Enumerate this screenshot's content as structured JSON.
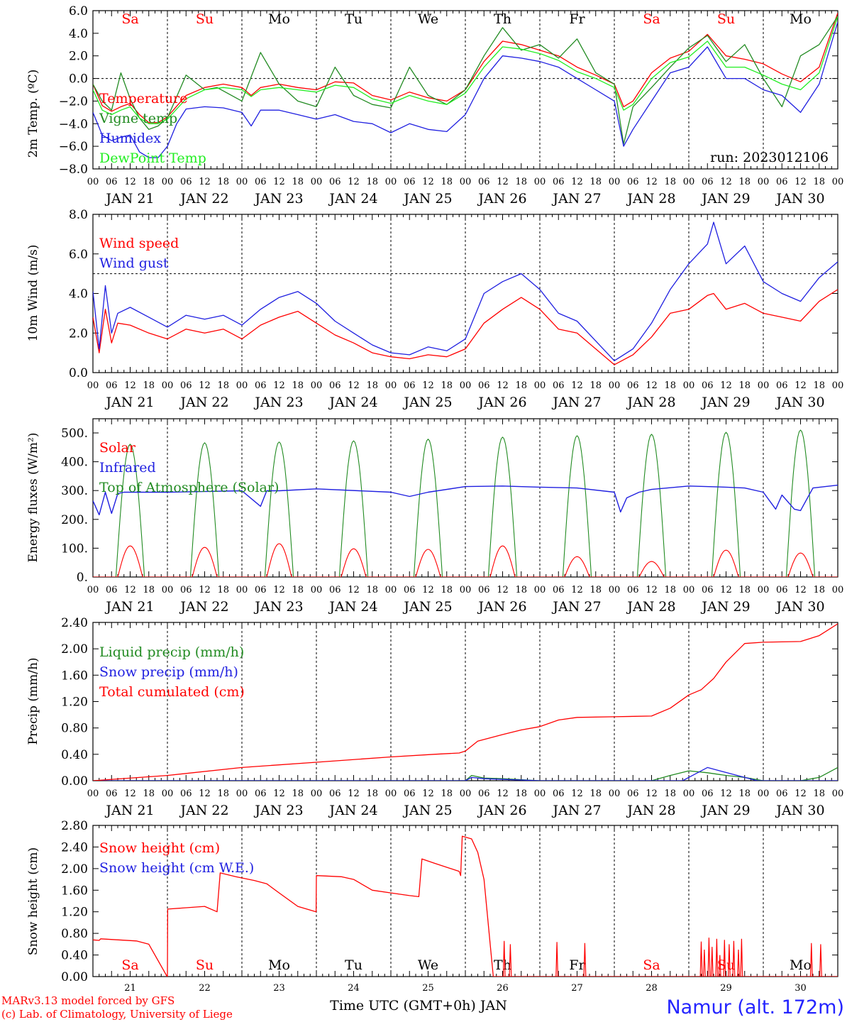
{
  "colors": {
    "red": "#ff0000",
    "green": "#228b22",
    "blue": "#1f1fe0",
    "lightgreen": "#22ee22",
    "black": "#000000",
    "footer_blue": "#2424ff"
  },
  "common": {
    "tick_hours": [
      "00",
      "06",
      "12",
      "18"
    ],
    "end_tick": "00",
    "dates": [
      "JAN 21",
      "JAN 22",
      "JAN 23",
      "JAN 24",
      "JAN 25",
      "JAN 26",
      "JAN 27",
      "JAN 28",
      "JAN 29",
      "JAN 30"
    ],
    "weekdays": [
      "Sa",
      "Su",
      "Mo",
      "Tu",
      "We",
      "Th",
      "Fr",
      "Sa",
      "Su",
      "Mo"
    ],
    "weekday_colors": [
      "#ff0000",
      "#ff0000",
      "#000000",
      "#000000",
      "#000000",
      "#000000",
      "#000000",
      "#ff0000",
      "#ff0000",
      "#000000"
    ],
    "day_numbers": [
      "21",
      "22",
      "23",
      "24",
      "25",
      "26",
      "27",
      "28",
      "29",
      "30"
    ]
  },
  "footer": {
    "model_line": "MARv3.13 model forced by GFS",
    "lab_line": "(c) Lab. of Climatology, University of Liege",
    "xlabel": "Time UTC (GMT+0h) JAN",
    "station": "Namur (alt. 172m)"
  },
  "chart_data": [
    {
      "type": "line",
      "ylabel": "2m Temp. (ºC)",
      "yticks": [
        "6.0",
        "4.0",
        "2.0",
        "0.0",
        "−2.0",
        "−4.0",
        "−6.0",
        "−8.0"
      ],
      "ylim": [
        -8,
        6
      ],
      "dashed_ref": 0,
      "run_label": "run: 2023012106",
      "x_unit": "hours since JAN 21 00 UTC",
      "series": [
        {
          "name": "Temperature",
          "color": "#ff0000",
          "x": [
            0,
            3,
            6,
            9,
            12,
            15,
            18,
            21,
            24,
            30,
            36,
            42,
            48,
            51,
            54,
            60,
            66,
            72,
            78,
            84,
            90,
            96,
            102,
            108,
            114,
            120,
            126,
            132,
            138,
            144,
            150,
            156,
            162,
            168,
            171,
            174,
            180,
            186,
            192,
            198,
            204,
            210,
            216,
            222,
            228,
            234,
            240
          ],
          "values": [
            -0.5,
            -2.4,
            -2.9,
            -2.5,
            -2.2,
            -3.2,
            -3.9,
            -3.9,
            -3.4,
            -1.5,
            -0.8,
            -0.5,
            -0.8,
            -1.5,
            -0.8,
            -0.5,
            -0.8,
            -1.0,
            -0.3,
            -0.4,
            -1.5,
            -1.9,
            -1.2,
            -1.7,
            -2.0,
            -1.0,
            1.5,
            3.3,
            3.0,
            2.5,
            2.0,
            1.0,
            0.3,
            -0.5,
            -2.5,
            -2.0,
            0.5,
            1.8,
            2.4,
            3.9,
            2.0,
            1.7,
            1.3,
            0.4,
            -0.3,
            1.0,
            5.8
          ]
        },
        {
          "name": "Vigne temp",
          "color": "#228b22",
          "x": [
            0,
            3,
            6,
            9,
            12,
            15,
            18,
            21,
            24,
            30,
            36,
            40,
            48,
            54,
            60,
            66,
            72,
            78,
            84,
            90,
            96,
            102,
            108,
            114,
            120,
            126,
            132,
            138,
            144,
            150,
            156,
            162,
            168,
            171,
            174,
            180,
            186,
            192,
            198,
            204,
            210,
            216,
            222,
            228,
            234,
            240
          ],
          "values": [
            -0.5,
            -2.0,
            -2.8,
            0.5,
            -1.8,
            -3.5,
            -4.5,
            -4.2,
            -3.5,
            0.3,
            -1.0,
            -0.8,
            -2.0,
            2.3,
            -0.5,
            -2.0,
            -2.5,
            1.0,
            -1.5,
            -2.3,
            -2.6,
            1.0,
            -1.5,
            -2.3,
            -1.0,
            2.0,
            4.5,
            2.5,
            3.0,
            1.8,
            3.5,
            0.5,
            -0.5,
            -5.8,
            -2.5,
            -0.8,
            1.0,
            2.7,
            3.8,
            1.5,
            3.0,
            0.0,
            -2.5,
            2.0,
            3.0,
            5.5
          ]
        },
        {
          "name": "Humidex",
          "color": "#1f1fe0",
          "x": [
            0,
            3,
            6,
            9,
            12,
            15,
            18,
            21,
            24,
            27,
            30,
            36,
            42,
            48,
            51,
            54,
            60,
            66,
            72,
            78,
            84,
            90,
            96,
            102,
            108,
            114,
            120,
            126,
            132,
            138,
            144,
            150,
            156,
            162,
            168,
            171,
            174,
            180,
            186,
            192,
            198,
            204,
            210,
            216,
            222,
            228,
            234,
            240
          ],
          "values": [
            -3.0,
            -5.0,
            -5.5,
            -5.2,
            -5.0,
            -6.5,
            -7.0,
            -7.0,
            -6.0,
            -4.0,
            -2.7,
            -2.5,
            -2.6,
            -3.0,
            -4.2,
            -2.8,
            -2.8,
            -3.2,
            -3.6,
            -3.2,
            -3.8,
            -4.0,
            -4.8,
            -4.0,
            -4.5,
            -4.7,
            -3.2,
            0.0,
            2.0,
            1.8,
            1.5,
            1.0,
            0.0,
            -1.0,
            -2.0,
            -6.0,
            -4.5,
            -2.0,
            0.5,
            1.0,
            2.8,
            0.0,
            0.0,
            -1.0,
            -1.5,
            -3.0,
            -0.5,
            5.0
          ]
        },
        {
          "name": "DewPoint Temp",
          "color": "#22ee22",
          "x": [
            0,
            3,
            6,
            9,
            12,
            15,
            18,
            21,
            24,
            30,
            36,
            42,
            48,
            51,
            54,
            60,
            66,
            72,
            78,
            84,
            90,
            96,
            102,
            108,
            114,
            120,
            126,
            132,
            138,
            144,
            150,
            156,
            162,
            168,
            171,
            174,
            180,
            186,
            192,
            198,
            204,
            210,
            216,
            222,
            228,
            234,
            240
          ],
          "values": [
            -1.0,
            -2.8,
            -3.2,
            -2.8,
            -2.5,
            -3.5,
            -4.0,
            -4.0,
            -3.6,
            -1.8,
            -1.0,
            -0.8,
            -1.0,
            -1.6,
            -1.0,
            -0.8,
            -1.0,
            -1.2,
            -0.6,
            -0.8,
            -1.8,
            -2.2,
            -1.5,
            -2.0,
            -2.3,
            -1.3,
            1.0,
            2.8,
            2.6,
            2.2,
            1.6,
            0.6,
            0.0,
            -0.8,
            -2.8,
            -2.3,
            0.0,
            1.4,
            1.9,
            3.3,
            1.0,
            1.0,
            0.3,
            -0.5,
            -1.0,
            0.5,
            5.5
          ]
        }
      ]
    },
    {
      "type": "line",
      "ylabel": "10m Wind (m/s)",
      "yticks": [
        "8.0",
        "6.0",
        "4.0",
        "2.0",
        "0.0"
      ],
      "ylim": [
        0,
        8
      ],
      "dashed_ref": 5,
      "x_unit": "hours since JAN 21 00 UTC",
      "series": [
        {
          "name": "Wind speed",
          "color": "#ff0000",
          "x": [
            0,
            2,
            4,
            6,
            8,
            12,
            18,
            24,
            30,
            36,
            42,
            48,
            54,
            60,
            66,
            72,
            78,
            84,
            90,
            96,
            102,
            108,
            114,
            120,
            126,
            132,
            138,
            144,
            150,
            156,
            162,
            168,
            174,
            180,
            186,
            192,
            198,
            200,
            204,
            210,
            216,
            222,
            228,
            234,
            240
          ],
          "values": [
            2.8,
            1.0,
            3.2,
            1.5,
            2.5,
            2.4,
            2.0,
            1.7,
            2.2,
            2.0,
            2.2,
            1.7,
            2.4,
            2.8,
            3.1,
            2.5,
            1.9,
            1.5,
            1.0,
            0.8,
            0.7,
            0.9,
            0.8,
            1.2,
            2.5,
            3.2,
            3.8,
            3.2,
            2.2,
            2.0,
            1.2,
            0.4,
            0.9,
            1.8,
            3.0,
            3.2,
            3.9,
            4.0,
            3.2,
            3.5,
            3.0,
            2.8,
            2.6,
            3.6,
            4.2
          ]
        },
        {
          "name": "Wind gust",
          "color": "#1f1fe0",
          "x": [
            0,
            2,
            4,
            6,
            8,
            12,
            18,
            24,
            30,
            36,
            42,
            48,
            54,
            60,
            66,
            72,
            78,
            84,
            90,
            96,
            102,
            108,
            114,
            120,
            126,
            132,
            138,
            144,
            150,
            156,
            162,
            168,
            174,
            180,
            186,
            192,
            198,
            200,
            204,
            210,
            216,
            222,
            228,
            234,
            240
          ],
          "values": [
            4.1,
            1.2,
            4.4,
            2.0,
            3.0,
            3.3,
            2.8,
            2.3,
            2.9,
            2.7,
            2.9,
            2.4,
            3.2,
            3.8,
            4.1,
            3.5,
            2.6,
            2.0,
            1.4,
            1.0,
            0.9,
            1.3,
            1.1,
            1.7,
            4.0,
            4.6,
            5.0,
            4.2,
            3.0,
            2.6,
            1.6,
            0.6,
            1.2,
            2.5,
            4.2,
            5.5,
            6.5,
            7.6,
            5.5,
            6.4,
            4.6,
            4.0,
            3.6,
            4.8,
            5.6
          ]
        }
      ]
    },
    {
      "type": "line",
      "ylabel": "Energy fluxes (W/m²)",
      "yticks": [
        "500.",
        "400.",
        "300.",
        "200.",
        "100.",
        "0."
      ],
      "ylim": [
        0,
        560
      ],
      "x_unit": "hours since JAN 21 00 UTC",
      "solar_peaks": [
        110,
        105,
        118,
        100,
        98,
        110,
        72,
        55,
        95,
        85
      ],
      "toa_peaks": [
        470,
        475,
        478,
        482,
        488,
        495,
        500,
        505,
        512,
        520
      ],
      "series": [
        {
          "name": "Solar",
          "color": "#ff0000"
        },
        {
          "name": "Infrared",
          "color": "#1f1fe0",
          "x": [
            0,
            2,
            4,
            6,
            8,
            10,
            24,
            48,
            54,
            56,
            60,
            72,
            96,
            102,
            108,
            120,
            132,
            144,
            156,
            168,
            170,
            172,
            176,
            180,
            192,
            204,
            210,
            216,
            220,
            222,
            226,
            228,
            232,
            240
          ],
          "values": [
            270,
            220,
            300,
            225,
            295,
            300,
            300,
            305,
            250,
            305,
            305,
            312,
            300,
            285,
            300,
            320,
            322,
            318,
            315,
            300,
            230,
            280,
            300,
            310,
            322,
            318,
            315,
            300,
            240,
            290,
            240,
            235,
            315,
            325
          ]
        },
        {
          "name": "Top of Atmosphere (Solar)",
          "color": "#228b22"
        }
      ]
    },
    {
      "type": "line",
      "ylabel": "Precip (mm/h)",
      "yticks": [
        "2.40",
        "2.00",
        "1.60",
        "1.20",
        "0.80",
        "0.40",
        "0.00"
      ],
      "ylim": [
        0,
        2.4
      ],
      "x_unit": "hours since JAN 21 00 UTC",
      "series": [
        {
          "name": "Liquid precip (mm/h)",
          "color": "#228b22",
          "x": [
            0,
            120,
            122,
            126,
            132,
            144,
            180,
            186,
            192,
            198,
            204,
            210,
            216,
            228,
            234,
            240
          ],
          "values": [
            0.0,
            0.0,
            0.08,
            0.04,
            0.03,
            0.0,
            0.0,
            0.08,
            0.15,
            0.12,
            0.08,
            0.05,
            0.0,
            0.0,
            0.05,
            0.2
          ]
        },
        {
          "name": "Snow precip (mm/h)",
          "color": "#1f1fe0",
          "x": [
            0,
            120,
            122,
            126,
            144,
            190,
            194,
            198,
            202,
            206,
            210,
            214,
            240
          ],
          "values": [
            0.0,
            0.0,
            0.05,
            0.03,
            0.0,
            0.0,
            0.1,
            0.2,
            0.15,
            0.1,
            0.05,
            0.0,
            0.0
          ]
        },
        {
          "name": "Total cumulated (cm)",
          "color": "#ff0000",
          "x": [
            0,
            24,
            48,
            72,
            96,
            110,
            118,
            120,
            124,
            132,
            138,
            144,
            150,
            156,
            168,
            180,
            186,
            192,
            196,
            200,
            204,
            210,
            216,
            228,
            234,
            240
          ],
          "values": [
            0.0,
            0.08,
            0.2,
            0.28,
            0.36,
            0.4,
            0.42,
            0.45,
            0.6,
            0.7,
            0.77,
            0.82,
            0.92,
            0.96,
            0.97,
            0.98,
            1.1,
            1.3,
            1.38,
            1.55,
            1.8,
            2.08,
            2.1,
            2.11,
            2.2,
            2.38
          ]
        }
      ]
    },
    {
      "type": "line",
      "ylabel": "Snow height (cm)",
      "yticks": [
        "2.80",
        "2.40",
        "2.00",
        "1.60",
        "1.20",
        "0.80",
        "0.40",
        "0.00"
      ],
      "ylim": [
        0,
        2.8
      ],
      "x_unit": "hours since JAN 21 00 UTC",
      "series": [
        {
          "name": "Snow height (cm)",
          "color": "#ff0000",
          "x": [
            0,
            2,
            2.5,
            14,
            18,
            23.9,
            24,
            24.1,
            36,
            40,
            41,
            46,
            52,
            56,
            60,
            66,
            71.9,
            72,
            80,
            84,
            90,
            96,
            102,
            105,
            106,
            110,
            118,
            118.5,
            119,
            122,
            124,
            126,
            128,
            129,
            240
          ],
          "values": [
            0.68,
            0.67,
            0.7,
            0.66,
            0.6,
            0.0,
            0.0,
            1.25,
            1.3,
            1.2,
            1.92,
            1.85,
            1.78,
            1.72,
            1.55,
            1.3,
            1.2,
            1.87,
            1.85,
            1.8,
            1.6,
            1.55,
            1.5,
            1.48,
            2.18,
            2.1,
            1.95,
            1.87,
            2.6,
            2.55,
            2.3,
            1.8,
            0.6,
            0.0,
            0.0
          ]
        },
        {
          "name": "Snow height (cm W.E.)",
          "color": "#1f1fe0"
        }
      ],
      "spikes_x": [
        132.5,
        134.5,
        149.5,
        158.5,
        196,
        197,
        198.5,
        199.5,
        201,
        202,
        203.5,
        205,
        206.5,
        208,
        209,
        231.5,
        234.5
      ],
      "spikes_h": [
        0.66,
        0.6,
        0.64,
        0.62,
        0.65,
        0.5,
        0.72,
        0.55,
        0.7,
        0.4,
        0.68,
        0.6,
        0.66,
        0.5,
        0.7,
        0.62,
        0.6
      ]
    }
  ]
}
